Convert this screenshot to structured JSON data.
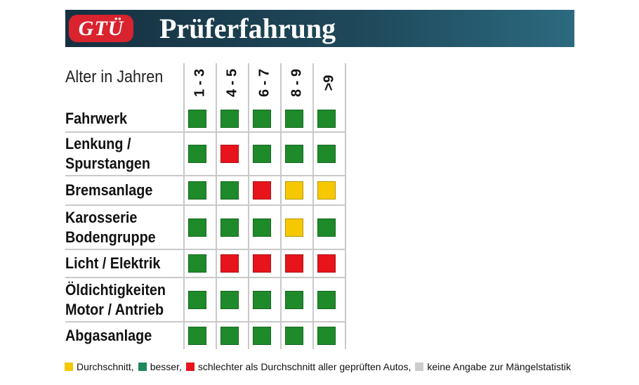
{
  "header": {
    "logo": "GTÜ",
    "title": "Prüferfahrung"
  },
  "table": {
    "corner": "Alter in Jahren",
    "columns": [
      "1 - 3",
      "4 - 5",
      "6 - 7",
      "8 - 9",
      ">9"
    ],
    "rows": [
      {
        "label": [
          "Fahrwerk"
        ],
        "cells": [
          "#1e8a2a",
          "#1e8a2a",
          "#1e8a2a",
          "#1e8a2a",
          "#1e8a2a"
        ]
      },
      {
        "label": [
          "Lenkung /",
          "Spurstangen"
        ],
        "cells": [
          "#1e8a2a",
          "#e8141b",
          "#1e8a2a",
          "#1e8a2a",
          "#1e8a2a"
        ]
      },
      {
        "label": [
          "Bremsanlage"
        ],
        "cells": [
          "#1e8a2a",
          "#1e8a2a",
          "#e8141b",
          "#f6c800",
          "#f6c800"
        ]
      },
      {
        "label": [
          "Karosserie",
          "Bodengruppe"
        ],
        "cells": [
          "#1e8a2a",
          "#1e8a2a",
          "#1e8a2a",
          "#f6c800",
          "#1e8a2a"
        ]
      },
      {
        "label": [
          "Licht / Elektrik"
        ],
        "cells": [
          "#1e8a2a",
          "#e8141b",
          "#e8141b",
          "#e8141b",
          "#e8141b"
        ]
      },
      {
        "label": [
          "Öldichtigkeiten",
          "Motor / Antrieb"
        ],
        "cells": [
          "#1e8a2a",
          "#1e8a2a",
          "#1e8a2a",
          "#1e8a2a",
          "#1e8a2a"
        ]
      },
      {
        "label": [
          "Abgasanlage"
        ],
        "cells": [
          "#1e8a2a",
          "#1e8a2a",
          "#1e8a2a",
          "#1e8a2a",
          "#1e8a2a"
        ]
      }
    ]
  },
  "legend": [
    {
      "color": "#f6c800",
      "label": "Durchschnitt,"
    },
    {
      "color": "#1e8a5a",
      "label": "besser,"
    },
    {
      "color": "#e8141b",
      "label": "schlechter als Durchschnitt aller geprüften Autos,"
    },
    {
      "color": "#cccccc",
      "label": "keine Angabe zur Mängelstatistik"
    }
  ]
}
